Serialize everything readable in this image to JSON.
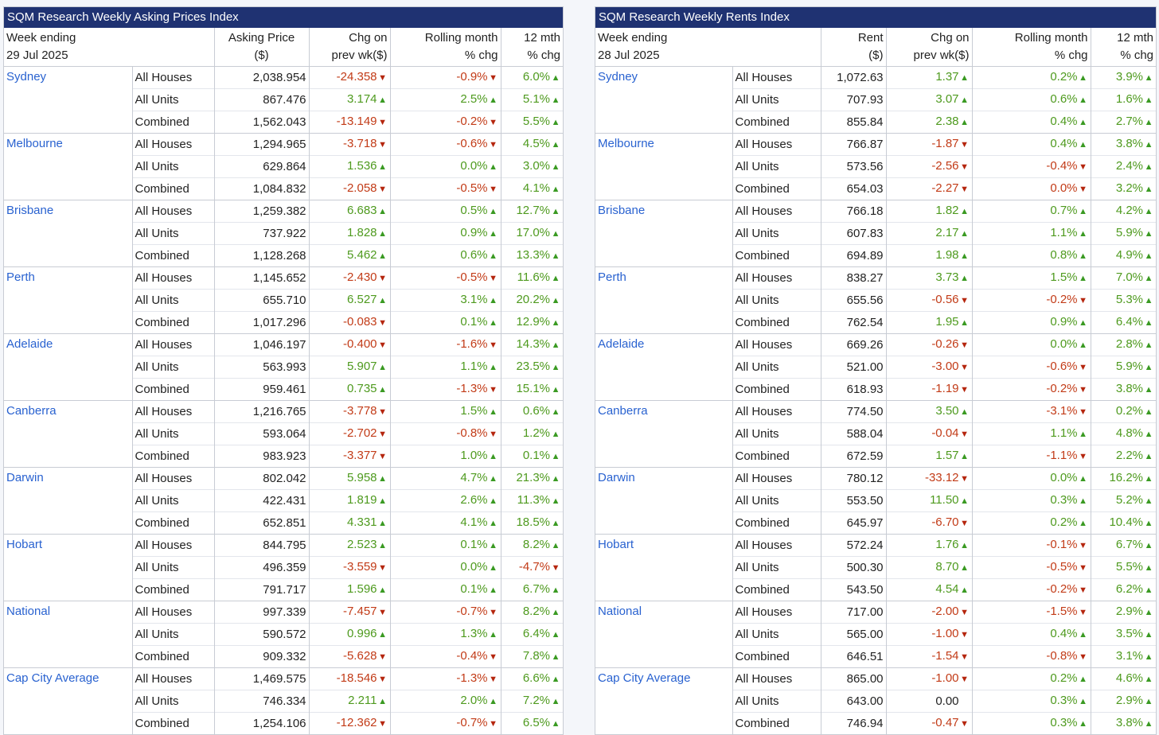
{
  "left": {
    "title": "SQM Research Weekly Asking Prices Index",
    "header": {
      "week_label": "Week ending",
      "week_date": "29 Jul 2025",
      "value_label_1": "Asking Price",
      "value_label_2": "($)",
      "chg_label_1": "Chg on",
      "chg_label_2": "prev wk($)",
      "roll_label_1": "Rolling month",
      "roll_label_2": "% chg",
      "yr_label_1": "12 mth",
      "yr_label_2": "% chg"
    },
    "cities": [
      {
        "name": "Sydney",
        "rows": [
          {
            "type": "All Houses",
            "value": "2,038.954",
            "chg": "-24.358",
            "chg_dir": "down",
            "roll": "-0.9%",
            "roll_dir": "down",
            "yr": "6.0%",
            "yr_dir": "up"
          },
          {
            "type": "All Units",
            "value": "867.476",
            "chg": "3.174",
            "chg_dir": "up",
            "roll": "2.5%",
            "roll_dir": "up",
            "yr": "5.1%",
            "yr_dir": "up"
          },
          {
            "type": "Combined",
            "value": "1,562.043",
            "chg": "-13.149",
            "chg_dir": "down",
            "roll": "-0.2%",
            "roll_dir": "down",
            "yr": "5.5%",
            "yr_dir": "up"
          }
        ]
      },
      {
        "name": "Melbourne",
        "rows": [
          {
            "type": "All Houses",
            "value": "1,294.965",
            "chg": "-3.718",
            "chg_dir": "down",
            "roll": "-0.6%",
            "roll_dir": "down",
            "yr": "4.5%",
            "yr_dir": "up"
          },
          {
            "type": "All Units",
            "value": "629.864",
            "chg": "1.536",
            "chg_dir": "up",
            "roll": "0.0%",
            "roll_dir": "up",
            "yr": "3.0%",
            "yr_dir": "up"
          },
          {
            "type": "Combined",
            "value": "1,084.832",
            "chg": "-2.058",
            "chg_dir": "down",
            "roll": "-0.5%",
            "roll_dir": "down",
            "yr": "4.1%",
            "yr_dir": "up"
          }
        ]
      },
      {
        "name": "Brisbane",
        "rows": [
          {
            "type": "All Houses",
            "value": "1,259.382",
            "chg": "6.683",
            "chg_dir": "up",
            "roll": "0.5%",
            "roll_dir": "up",
            "yr": "12.7%",
            "yr_dir": "up"
          },
          {
            "type": "All Units",
            "value": "737.922",
            "chg": "1.828",
            "chg_dir": "up",
            "roll": "0.9%",
            "roll_dir": "up",
            "yr": "17.0%",
            "yr_dir": "up"
          },
          {
            "type": "Combined",
            "value": "1,128.268",
            "chg": "5.462",
            "chg_dir": "up",
            "roll": "0.6%",
            "roll_dir": "up",
            "yr": "13.3%",
            "yr_dir": "up"
          }
        ]
      },
      {
        "name": "Perth",
        "rows": [
          {
            "type": "All Houses",
            "value": "1,145.652",
            "chg": "-2.430",
            "chg_dir": "down",
            "roll": "-0.5%",
            "roll_dir": "down",
            "yr": "11.6%",
            "yr_dir": "up"
          },
          {
            "type": "All Units",
            "value": "655.710",
            "chg": "6.527",
            "chg_dir": "up",
            "roll": "3.1%",
            "roll_dir": "up",
            "yr": "20.2%",
            "yr_dir": "up"
          },
          {
            "type": "Combined",
            "value": "1,017.296",
            "chg": "-0.083",
            "chg_dir": "down",
            "roll": "0.1%",
            "roll_dir": "up",
            "yr": "12.9%",
            "yr_dir": "up"
          }
        ]
      },
      {
        "name": "Adelaide",
        "rows": [
          {
            "type": "All Houses",
            "value": "1,046.197",
            "chg": "-0.400",
            "chg_dir": "down",
            "roll": "-1.6%",
            "roll_dir": "down",
            "yr": "14.3%",
            "yr_dir": "up"
          },
          {
            "type": "All Units",
            "value": "563.993",
            "chg": "5.907",
            "chg_dir": "up",
            "roll": "1.1%",
            "roll_dir": "up",
            "yr": "23.5%",
            "yr_dir": "up"
          },
          {
            "type": "Combined",
            "value": "959.461",
            "chg": "0.735",
            "chg_dir": "up",
            "roll": "-1.3%",
            "roll_dir": "down",
            "yr": "15.1%",
            "yr_dir": "up"
          }
        ]
      },
      {
        "name": "Canberra",
        "rows": [
          {
            "type": "All Houses",
            "value": "1,216.765",
            "chg": "-3.778",
            "chg_dir": "down",
            "roll": "1.5%",
            "roll_dir": "up",
            "yr": "0.6%",
            "yr_dir": "up"
          },
          {
            "type": "All Units",
            "value": "593.064",
            "chg": "-2.702",
            "chg_dir": "down",
            "roll": "-0.8%",
            "roll_dir": "down",
            "yr": "1.2%",
            "yr_dir": "up"
          },
          {
            "type": "Combined",
            "value": "983.923",
            "chg": "-3.377",
            "chg_dir": "down",
            "roll": "1.0%",
            "roll_dir": "up",
            "yr": "0.1%",
            "yr_dir": "up"
          }
        ]
      },
      {
        "name": "Darwin",
        "rows": [
          {
            "type": "All Houses",
            "value": "802.042",
            "chg": "5.958",
            "chg_dir": "up",
            "roll": "4.7%",
            "roll_dir": "up",
            "yr": "21.3%",
            "yr_dir": "up"
          },
          {
            "type": "All Units",
            "value": "422.431",
            "chg": "1.819",
            "chg_dir": "up",
            "roll": "2.6%",
            "roll_dir": "up",
            "yr": "11.3%",
            "yr_dir": "up"
          },
          {
            "type": "Combined",
            "value": "652.851",
            "chg": "4.331",
            "chg_dir": "up",
            "roll": "4.1%",
            "roll_dir": "up",
            "yr": "18.5%",
            "yr_dir": "up"
          }
        ]
      },
      {
        "name": "Hobart",
        "rows": [
          {
            "type": "All Houses",
            "value": "844.795",
            "chg": "2.523",
            "chg_dir": "up",
            "roll": "0.1%",
            "roll_dir": "up",
            "yr": "8.2%",
            "yr_dir": "up"
          },
          {
            "type": "All Units",
            "value": "496.359",
            "chg": "-3.559",
            "chg_dir": "down",
            "roll": "0.0%",
            "roll_dir": "up",
            "yr": "-4.7%",
            "yr_dir": "down"
          },
          {
            "type": "Combined",
            "value": "791.717",
            "chg": "1.596",
            "chg_dir": "up",
            "roll": "0.1%",
            "roll_dir": "up",
            "yr": "6.7%",
            "yr_dir": "up"
          }
        ]
      },
      {
        "name": "National",
        "rows": [
          {
            "type": "All Houses",
            "value": "997.339",
            "chg": "-7.457",
            "chg_dir": "down",
            "roll": "-0.7%",
            "roll_dir": "down",
            "yr": "8.2%",
            "yr_dir": "up"
          },
          {
            "type": "All Units",
            "value": "590.572",
            "chg": "0.996",
            "chg_dir": "up",
            "roll": "1.3%",
            "roll_dir": "up",
            "yr": "6.4%",
            "yr_dir": "up"
          },
          {
            "type": "Combined",
            "value": "909.332",
            "chg": "-5.628",
            "chg_dir": "down",
            "roll": "-0.4%",
            "roll_dir": "down",
            "yr": "7.8%",
            "yr_dir": "up"
          }
        ]
      },
      {
        "name": "Cap City Average",
        "rows": [
          {
            "type": "All Houses",
            "value": "1,469.575",
            "chg": "-18.546",
            "chg_dir": "down",
            "roll": "-1.3%",
            "roll_dir": "down",
            "yr": "6.6%",
            "yr_dir": "up"
          },
          {
            "type": "All Units",
            "value": "746.334",
            "chg": "2.211",
            "chg_dir": "up",
            "roll": "2.0%",
            "roll_dir": "up",
            "yr": "7.2%",
            "yr_dir": "up"
          },
          {
            "type": "Combined",
            "value": "1,254.106",
            "chg": "-12.362",
            "chg_dir": "down",
            "roll": "-0.7%",
            "roll_dir": "down",
            "yr": "6.5%",
            "yr_dir": "up"
          }
        ]
      }
    ]
  },
  "right": {
    "title": "SQM Research Weekly Rents Index",
    "header": {
      "week_label": "Week ending",
      "week_date": "28 Jul 2025",
      "value_label_1": "Rent",
      "value_label_2": "($)",
      "chg_label_1": "Chg on",
      "chg_label_2": "prev wk($)",
      "roll_label_1": "Rolling month",
      "roll_label_2": "% chg",
      "yr_label_1": "12 mth",
      "yr_label_2": "% chg"
    },
    "cities": [
      {
        "name": "Sydney",
        "rows": [
          {
            "type": "All Houses",
            "value": "1,072.63",
            "chg": "1.37",
            "chg_dir": "up",
            "roll": "0.2%",
            "roll_dir": "up",
            "yr": "3.9%",
            "yr_dir": "up"
          },
          {
            "type": "All Units",
            "value": "707.93",
            "chg": "3.07",
            "chg_dir": "up",
            "roll": "0.6%",
            "roll_dir": "up",
            "yr": "1.6%",
            "yr_dir": "up"
          },
          {
            "type": "Combined",
            "value": "855.84",
            "chg": "2.38",
            "chg_dir": "up",
            "roll": "0.4%",
            "roll_dir": "up",
            "yr": "2.7%",
            "yr_dir": "up"
          }
        ]
      },
      {
        "name": "Melbourne",
        "rows": [
          {
            "type": "All Houses",
            "value": "766.87",
            "chg": "-1.87",
            "chg_dir": "down",
            "roll": "0.4%",
            "roll_dir": "up",
            "yr": "3.8%",
            "yr_dir": "up"
          },
          {
            "type": "All Units",
            "value": "573.56",
            "chg": "-2.56",
            "chg_dir": "down",
            "roll": "-0.4%",
            "roll_dir": "down",
            "yr": "2.4%",
            "yr_dir": "up"
          },
          {
            "type": "Combined",
            "value": "654.03",
            "chg": "-2.27",
            "chg_dir": "down",
            "roll": "0.0%",
            "roll_dir": "down",
            "yr": "3.2%",
            "yr_dir": "up"
          }
        ]
      },
      {
        "name": "Brisbane",
        "rows": [
          {
            "type": "All Houses",
            "value": "766.18",
            "chg": "1.82",
            "chg_dir": "up",
            "roll": "0.7%",
            "roll_dir": "up",
            "yr": "4.2%",
            "yr_dir": "up"
          },
          {
            "type": "All Units",
            "value": "607.83",
            "chg": "2.17",
            "chg_dir": "up",
            "roll": "1.1%",
            "roll_dir": "up",
            "yr": "5.9%",
            "yr_dir": "up"
          },
          {
            "type": "Combined",
            "value": "694.89",
            "chg": "1.98",
            "chg_dir": "up",
            "roll": "0.8%",
            "roll_dir": "up",
            "yr": "4.9%",
            "yr_dir": "up"
          }
        ]
      },
      {
        "name": "Perth",
        "rows": [
          {
            "type": "All Houses",
            "value": "838.27",
            "chg": "3.73",
            "chg_dir": "up",
            "roll": "1.5%",
            "roll_dir": "up",
            "yr": "7.0%",
            "yr_dir": "up"
          },
          {
            "type": "All Units",
            "value": "655.56",
            "chg": "-0.56",
            "chg_dir": "down",
            "roll": "-0.2%",
            "roll_dir": "down",
            "yr": "5.3%",
            "yr_dir": "up"
          },
          {
            "type": "Combined",
            "value": "762.54",
            "chg": "1.95",
            "chg_dir": "up",
            "roll": "0.9%",
            "roll_dir": "up",
            "yr": "6.4%",
            "yr_dir": "up"
          }
        ]
      },
      {
        "name": "Adelaide",
        "rows": [
          {
            "type": "All Houses",
            "value": "669.26",
            "chg": "-0.26",
            "chg_dir": "down",
            "roll": "0.0%",
            "roll_dir": "up",
            "yr": "2.8%",
            "yr_dir": "up"
          },
          {
            "type": "All Units",
            "value": "521.00",
            "chg": "-3.00",
            "chg_dir": "down",
            "roll": "-0.6%",
            "roll_dir": "down",
            "yr": "5.9%",
            "yr_dir": "up"
          },
          {
            "type": "Combined",
            "value": "618.93",
            "chg": "-1.19",
            "chg_dir": "down",
            "roll": "-0.2%",
            "roll_dir": "down",
            "yr": "3.8%",
            "yr_dir": "up"
          }
        ]
      },
      {
        "name": "Canberra",
        "rows": [
          {
            "type": "All Houses",
            "value": "774.50",
            "chg": "3.50",
            "chg_dir": "up",
            "roll": "-3.1%",
            "roll_dir": "down",
            "yr": "0.2%",
            "yr_dir": "up"
          },
          {
            "type": "All Units",
            "value": "588.04",
            "chg": "-0.04",
            "chg_dir": "down",
            "roll": "1.1%",
            "roll_dir": "up",
            "yr": "4.8%",
            "yr_dir": "up"
          },
          {
            "type": "Combined",
            "value": "672.59",
            "chg": "1.57",
            "chg_dir": "up",
            "roll": "-1.1%",
            "roll_dir": "down",
            "yr": "2.2%",
            "yr_dir": "up"
          }
        ]
      },
      {
        "name": "Darwin",
        "rows": [
          {
            "type": "All Houses",
            "value": "780.12",
            "chg": "-33.12",
            "chg_dir": "down",
            "roll": "0.0%",
            "roll_dir": "up",
            "yr": "16.2%",
            "yr_dir": "up"
          },
          {
            "type": "All Units",
            "value": "553.50",
            "chg": "11.50",
            "chg_dir": "up",
            "roll": "0.3%",
            "roll_dir": "up",
            "yr": "5.2%",
            "yr_dir": "up"
          },
          {
            "type": "Combined",
            "value": "645.97",
            "chg": "-6.70",
            "chg_dir": "down",
            "roll": "0.2%",
            "roll_dir": "up",
            "yr": "10.4%",
            "yr_dir": "up"
          }
        ]
      },
      {
        "name": "Hobart",
        "rows": [
          {
            "type": "All Houses",
            "value": "572.24",
            "chg": "1.76",
            "chg_dir": "up",
            "roll": "-0.1%",
            "roll_dir": "down",
            "yr": "6.7%",
            "yr_dir": "up"
          },
          {
            "type": "All Units",
            "value": "500.30",
            "chg": "8.70",
            "chg_dir": "up",
            "roll": "-0.5%",
            "roll_dir": "down",
            "yr": "5.5%",
            "yr_dir": "up"
          },
          {
            "type": "Combined",
            "value": "543.50",
            "chg": "4.54",
            "chg_dir": "up",
            "roll": "-0.2%",
            "roll_dir": "down",
            "yr": "6.2%",
            "yr_dir": "up"
          }
        ]
      },
      {
        "name": "National",
        "rows": [
          {
            "type": "All Houses",
            "value": "717.00",
            "chg": "-2.00",
            "chg_dir": "down",
            "roll": "-1.5%",
            "roll_dir": "down",
            "yr": "2.9%",
            "yr_dir": "up"
          },
          {
            "type": "All Units",
            "value": "565.00",
            "chg": "-1.00",
            "chg_dir": "down",
            "roll": "0.4%",
            "roll_dir": "up",
            "yr": "3.5%",
            "yr_dir": "up"
          },
          {
            "type": "Combined",
            "value": "646.51",
            "chg": "-1.54",
            "chg_dir": "down",
            "roll": "-0.8%",
            "roll_dir": "down",
            "yr": "3.1%",
            "yr_dir": "up"
          }
        ]
      },
      {
        "name": "Cap City Average",
        "rows": [
          {
            "type": "All Houses",
            "value": "865.00",
            "chg": "-1.00",
            "chg_dir": "down",
            "roll": "0.2%",
            "roll_dir": "up",
            "yr": "4.6%",
            "yr_dir": "up"
          },
          {
            "type": "All Units",
            "value": "643.00",
            "chg": "0.00",
            "chg_dir": "none",
            "roll": "0.3%",
            "roll_dir": "up",
            "yr": "2.9%",
            "yr_dir": "up"
          },
          {
            "type": "Combined",
            "value": "746.94",
            "chg": "-0.47",
            "chg_dir": "down",
            "roll": "0.3%",
            "roll_dir": "up",
            "yr": "3.8%",
            "yr_dir": "up"
          }
        ]
      }
    ]
  },
  "colors": {
    "header_bg": "#1f3272",
    "city_text": "#2962d0",
    "up": "#4e9a1e",
    "down": "#c23b17"
  },
  "icons": {
    "up": "triangle-up-icon",
    "down": "triangle-down-icon"
  }
}
